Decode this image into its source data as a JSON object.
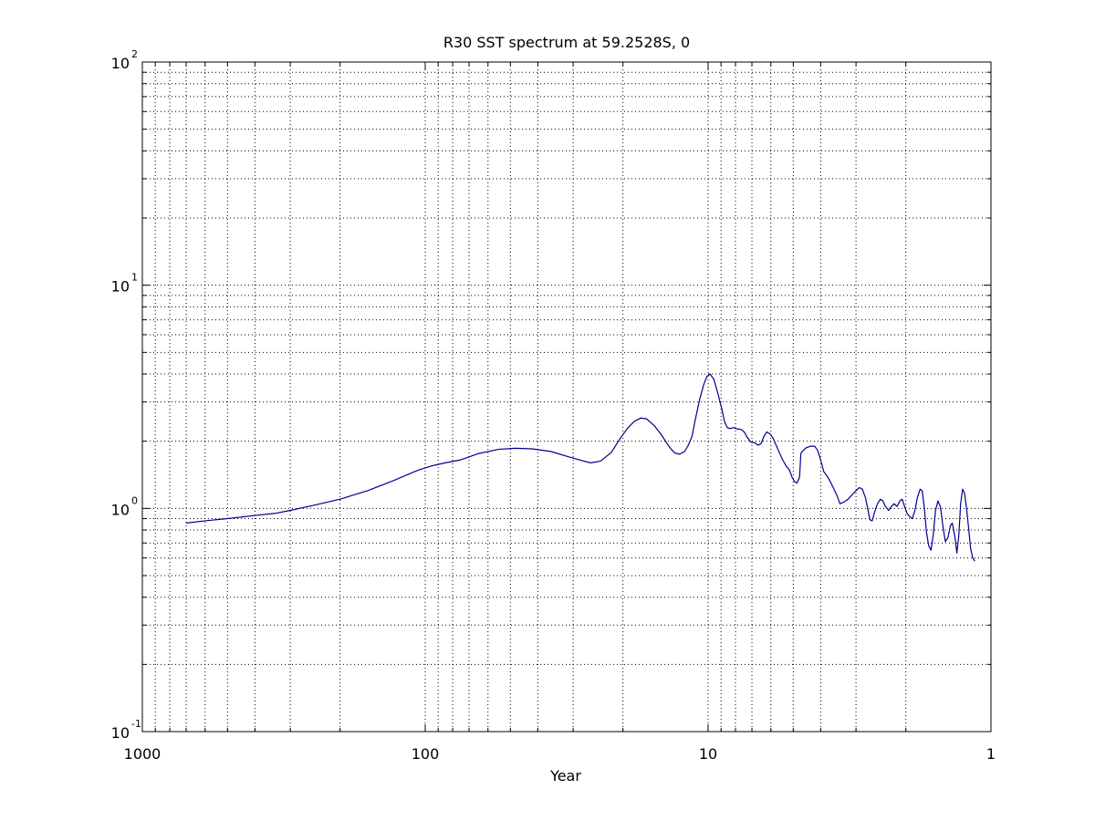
{
  "chart_data": {
    "type": "line",
    "title": "R30 SST spectrum at 59.2528S, 0",
    "xlabel": "Year",
    "ylabel": "",
    "x_scale": "log",
    "y_scale": "log",
    "x_reversed": true,
    "xlim": [
      1000,
      1
    ],
    "ylim": [
      0.1,
      100
    ],
    "grid": true,
    "x_ticks": [
      {
        "value": 1000,
        "label": "1000"
      },
      {
        "value": 100,
        "label": "100"
      },
      {
        "value": 10,
        "label": "10"
      },
      {
        "value": 1,
        "label": "1"
      }
    ],
    "y_ticks": [
      {
        "value": 0.1,
        "base": "10",
        "exp": "-1"
      },
      {
        "value": 1,
        "base": "10",
        "exp": "0"
      },
      {
        "value": 10,
        "base": "10",
        "exp": "1"
      },
      {
        "value": 100,
        "base": "10",
        "exp": "2"
      }
    ],
    "series": [
      {
        "color": "#00008b",
        "points": [
          [
            700,
            0.86
          ],
          [
            600,
            0.88
          ],
          [
            500,
            0.9
          ],
          [
            400,
            0.93
          ],
          [
            340,
            0.95
          ],
          [
            300,
            0.98
          ],
          [
            250,
            1.03
          ],
          [
            200,
            1.1
          ],
          [
            160,
            1.2
          ],
          [
            130,
            1.33
          ],
          [
            115,
            1.42
          ],
          [
            105,
            1.49
          ],
          [
            95,
            1.55
          ],
          [
            85,
            1.6
          ],
          [
            75,
            1.65
          ],
          [
            65,
            1.76
          ],
          [
            55,
            1.84
          ],
          [
            48,
            1.86
          ],
          [
            42,
            1.85
          ],
          [
            36,
            1.8
          ],
          [
            31,
            1.7
          ],
          [
            28,
            1.64
          ],
          [
            26,
            1.6
          ],
          [
            24,
            1.63
          ],
          [
            22,
            1.78
          ],
          [
            20.5,
            2.05
          ],
          [
            19.2,
            2.3
          ],
          [
            18.2,
            2.46
          ],
          [
            17.3,
            2.54
          ],
          [
            16.5,
            2.52
          ],
          [
            15.5,
            2.35
          ],
          [
            14.6,
            2.13
          ],
          [
            14,
            1.96
          ],
          [
            13.5,
            1.84
          ],
          [
            13.1,
            1.77
          ],
          [
            12.6,
            1.75
          ],
          [
            12.1,
            1.8
          ],
          [
            11.8,
            1.9
          ],
          [
            11.4,
            2.1
          ],
          [
            11.1,
            2.5
          ],
          [
            10.7,
            3.1
          ],
          [
            10.35,
            3.6
          ],
          [
            10.1,
            3.9
          ],
          [
            9.85,
            4.0
          ],
          [
            9.55,
            3.8
          ],
          [
            9.25,
            3.3
          ],
          [
            8.95,
            2.8
          ],
          [
            8.75,
            2.45
          ],
          [
            8.55,
            2.3
          ],
          [
            8.35,
            2.28
          ],
          [
            8.15,
            2.3
          ],
          [
            7.9,
            2.27
          ],
          [
            7.65,
            2.26
          ],
          [
            7.45,
            2.2
          ],
          [
            7.25,
            2.07
          ],
          [
            7.05,
            1.98
          ],
          [
            6.85,
            1.97
          ],
          [
            6.65,
            1.92
          ],
          [
            6.5,
            1.95
          ],
          [
            6.35,
            2.1
          ],
          [
            6.2,
            2.2
          ],
          [
            6.05,
            2.16
          ],
          [
            5.9,
            2.07
          ],
          [
            5.75,
            1.92
          ],
          [
            5.6,
            1.78
          ],
          [
            5.45,
            1.65
          ],
          [
            5.3,
            1.55
          ],
          [
            5.15,
            1.48
          ],
          [
            5.05,
            1.38
          ],
          [
            4.95,
            1.32
          ],
          [
            4.85,
            1.3
          ],
          [
            4.75,
            1.38
          ],
          [
            4.7,
            1.76
          ],
          [
            4.65,
            1.8
          ],
          [
            4.5,
            1.87
          ],
          [
            4.35,
            1.9
          ],
          [
            4.2,
            1.9
          ],
          [
            4.1,
            1.82
          ],
          [
            4.0,
            1.65
          ],
          [
            3.9,
            1.46
          ],
          [
            3.8,
            1.4
          ],
          [
            3.7,
            1.32
          ],
          [
            3.6,
            1.23
          ],
          [
            3.5,
            1.14
          ],
          [
            3.42,
            1.05
          ],
          [
            3.3,
            1.07
          ],
          [
            3.2,
            1.1
          ],
          [
            3.1,
            1.15
          ],
          [
            3.0,
            1.2
          ],
          [
            2.92,
            1.24
          ],
          [
            2.85,
            1.22
          ],
          [
            2.78,
            1.12
          ],
          [
            2.72,
            0.98
          ],
          [
            2.68,
            0.89
          ],
          [
            2.63,
            0.88
          ],
          [
            2.58,
            0.96
          ],
          [
            2.52,
            1.05
          ],
          [
            2.46,
            1.1
          ],
          [
            2.41,
            1.08
          ],
          [
            2.36,
            1.02
          ],
          [
            2.3,
            0.98
          ],
          [
            2.25,
            1.02
          ],
          [
            2.2,
            1.05
          ],
          [
            2.15,
            1.02
          ],
          [
            2.1,
            1.08
          ],
          [
            2.06,
            1.1
          ],
          [
            2.02,
            1.02
          ],
          [
            1.98,
            0.95
          ],
          [
            1.94,
            0.92
          ],
          [
            1.9,
            0.9
          ],
          [
            1.86,
            0.97
          ],
          [
            1.82,
            1.12
          ],
          [
            1.78,
            1.22
          ],
          [
            1.75,
            1.2
          ],
          [
            1.72,
            1.0
          ],
          [
            1.69,
            0.78
          ],
          [
            1.66,
            0.68
          ],
          [
            1.63,
            0.65
          ],
          [
            1.6,
            0.76
          ],
          [
            1.57,
            0.98
          ],
          [
            1.54,
            1.08
          ],
          [
            1.51,
            1.02
          ],
          [
            1.48,
            0.84
          ],
          [
            1.45,
            0.71
          ],
          [
            1.42,
            0.74
          ],
          [
            1.39,
            0.84
          ],
          [
            1.37,
            0.86
          ],
          [
            1.34,
            0.74
          ],
          [
            1.32,
            0.63
          ],
          [
            1.3,
            0.75
          ],
          [
            1.28,
            1.05
          ],
          [
            1.26,
            1.22
          ],
          [
            1.24,
            1.17
          ],
          [
            1.22,
            1.0
          ],
          [
            1.2,
            0.82
          ],
          [
            1.18,
            0.66
          ],
          [
            1.16,
            0.6
          ],
          [
            1.14,
            0.58
          ]
        ]
      }
    ]
  }
}
